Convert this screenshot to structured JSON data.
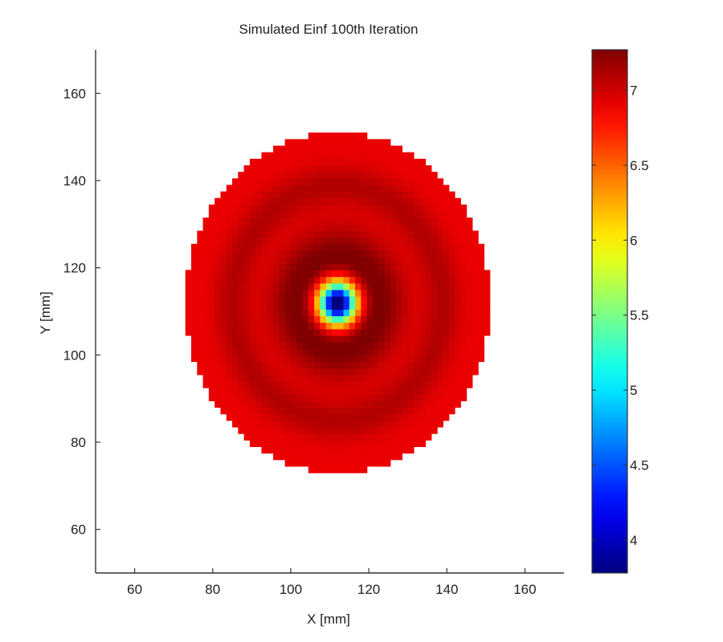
{
  "chart_data": {
    "type": "heatmap",
    "title": "Simulated Einf 100th Iteration",
    "xlabel": "X [mm]",
    "ylabel": "Y [mm]",
    "xlim": [
      50,
      170
    ],
    "ylim": [
      50,
      170
    ],
    "xticks": [
      60,
      80,
      100,
      120,
      140,
      160
    ],
    "yticks": [
      60,
      80,
      100,
      120,
      140,
      160
    ],
    "colormap": "jet",
    "colorbar": {
      "range": [
        3.78,
        7.27
      ],
      "ticks": [
        4,
        4.5,
        5,
        5.5,
        6,
        6.5,
        7
      ],
      "tick_labels": [
        "4",
        "4.5",
        "5",
        "5.5",
        "6",
        "6.5",
        "7"
      ]
    },
    "field": {
      "center": [
        112,
        112
      ],
      "domain_radius": 39,
      "min_value": 3.8,
      "background_value": 6.9,
      "peak_ring": {
        "radius": 10,
        "value": 7.27
      },
      "outer_ring": {
        "radius": 27,
        "value": 7.1
      }
    },
    "grid": false,
    "colors": {
      "axes": "#333333",
      "background": "#ffffff"
    }
  }
}
